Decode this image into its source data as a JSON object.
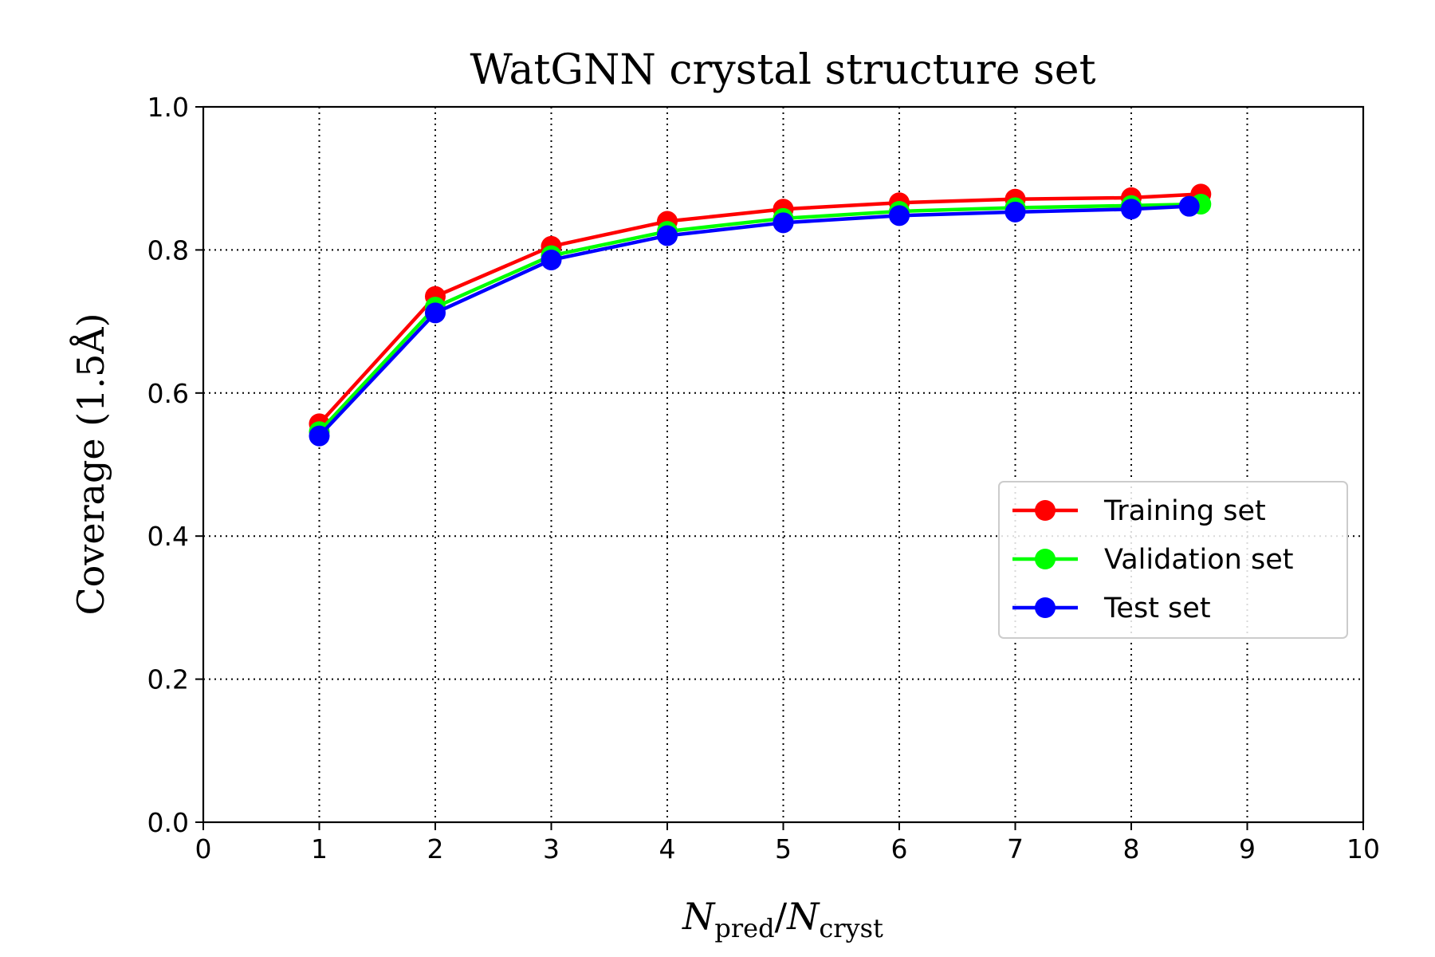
{
  "chart_data": {
    "type": "line",
    "title": "WatGNN crystal structure set",
    "xlabel": {
      "main": "N",
      "sub1": "pred",
      "slash": "/",
      "main2": "N",
      "sub2": "cryst"
    },
    "ylabel": "Coverage (1.5Å)",
    "xlim": [
      0,
      10
    ],
    "ylim": [
      0,
      1
    ],
    "xticks": [
      "0",
      "1",
      "2",
      "3",
      "4",
      "5",
      "6",
      "7",
      "8",
      "9",
      "10"
    ],
    "yticks": [
      "0.0",
      "0.2",
      "0.4",
      "0.6",
      "0.8",
      "1.0"
    ],
    "grid": true,
    "legend_position": "center-right",
    "series": [
      {
        "name": "Training set",
        "color": "#ff0000",
        "x": [
          1,
          2,
          3,
          4,
          5,
          6,
          7,
          8,
          8.6
        ],
        "y": [
          0.557,
          0.735,
          0.805,
          0.84,
          0.857,
          0.866,
          0.871,
          0.873,
          0.878
        ]
      },
      {
        "name": "Validation set",
        "color": "#00ff00",
        "x": [
          1,
          2,
          3,
          4,
          5,
          6,
          7,
          8,
          8.6
        ],
        "y": [
          0.546,
          0.72,
          0.792,
          0.826,
          0.844,
          0.854,
          0.859,
          0.862,
          0.864
        ]
      },
      {
        "name": "Test set",
        "color": "#0000ff",
        "x": [
          1,
          2,
          3,
          4,
          5,
          6,
          7,
          8,
          8.5
        ],
        "y": [
          0.54,
          0.712,
          0.786,
          0.82,
          0.838,
          0.848,
          0.853,
          0.857,
          0.861
        ]
      }
    ]
  }
}
